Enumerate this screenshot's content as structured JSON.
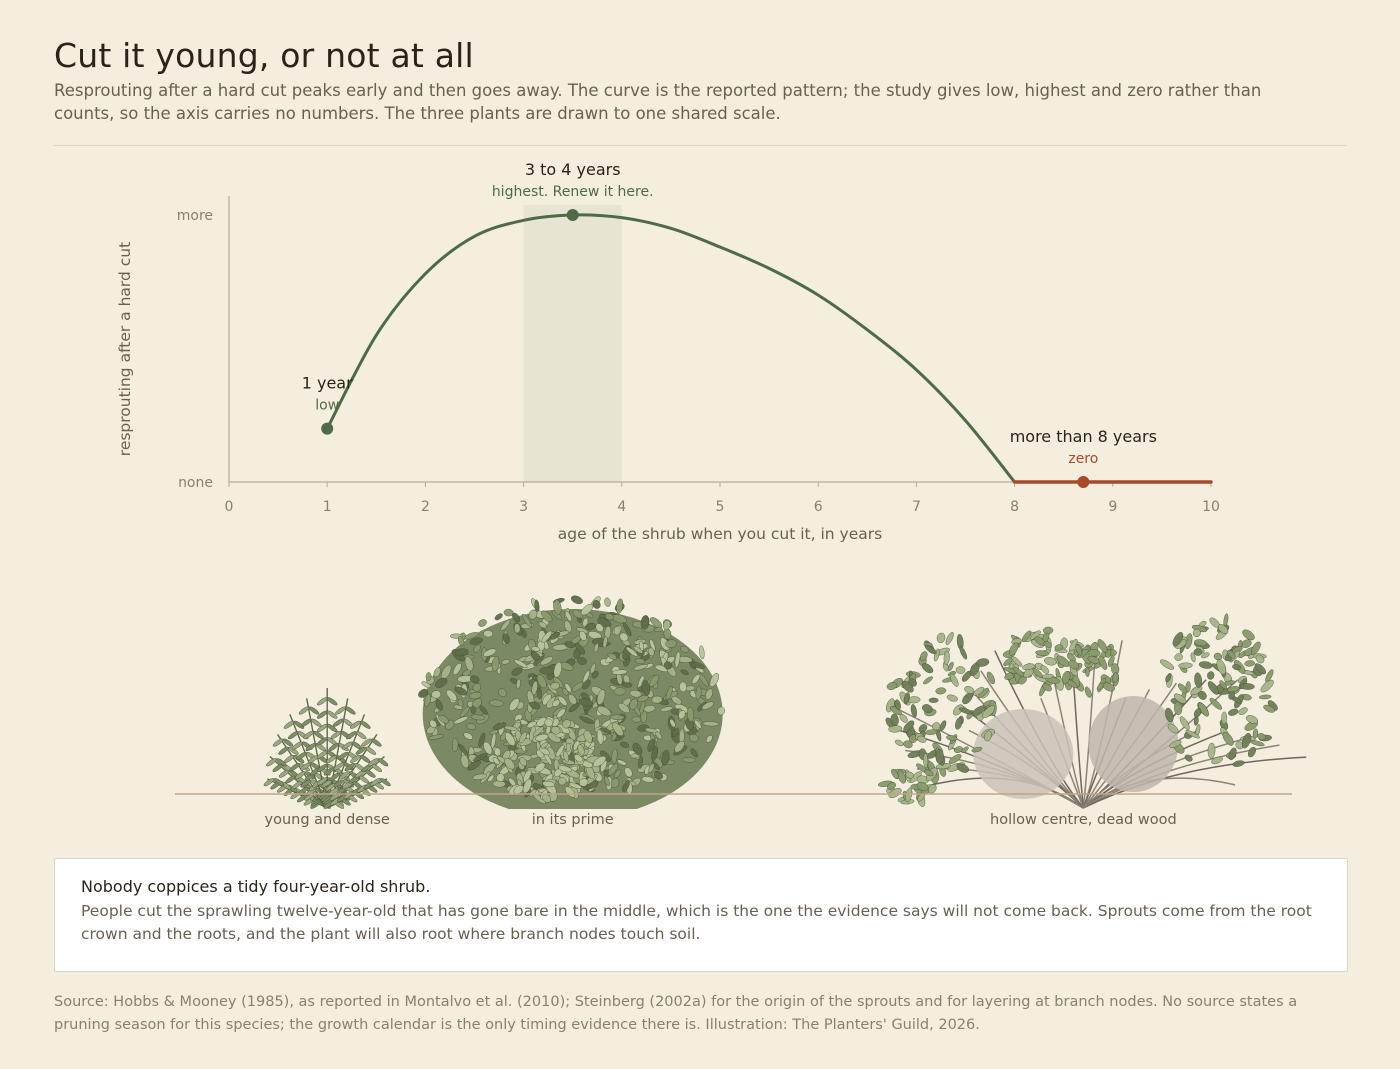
{
  "header": {
    "title": "Cut it young, or not at all",
    "subtitle": "Resprouting after a hard cut peaks early and then goes away. The curve is the reported pattern; the study gives low, highest and zero rather than counts, so the axis carries no numbers. The three plants are drawn to one shared scale."
  },
  "chart_data": {
    "type": "line",
    "xlabel": "age of the shrub when you cut it, in years",
    "ylabel": "resprouting after a hard cut",
    "xlim": [
      0,
      10
    ],
    "ylim": [
      0,
      1
    ],
    "x_ticks": [
      "0",
      "1",
      "2",
      "3",
      "4",
      "5",
      "6",
      "7",
      "8",
      "9",
      "10"
    ],
    "y_ticks": [
      "none",
      "more"
    ],
    "grid": false,
    "highlight_band": [
      3,
      4
    ],
    "series": [
      {
        "x": [
          1,
          1.5,
          2,
          2.5,
          3,
          3.5,
          4,
          4.5,
          5,
          5.5,
          6,
          6.5,
          7,
          7.5,
          8
        ],
        "y": [
          0.2,
          0.55,
          0.78,
          0.92,
          0.98,
          1.0,
          0.99,
          0.95,
          0.88,
          0.8,
          0.7,
          0.57,
          0.42,
          0.23,
          0.0
        ],
        "color": "#4e6a47"
      },
      {
        "x": [
          8,
          8.7,
          10
        ],
        "y": [
          0,
          0,
          0
        ],
        "color": "#a8492a"
      }
    ],
    "annotations": [
      {
        "x": 1,
        "y": 0.2,
        "label": "1 year",
        "sublabel": "low",
        "color": "#4e6a47"
      },
      {
        "x": 3.5,
        "y": 1.0,
        "label": "3 to 4 years",
        "sublabel": "highest. Renew it here.",
        "color": "#4e6a47"
      },
      {
        "x": 8.7,
        "y": 0,
        "label": "more than 8 years",
        "sublabel": "zero",
        "color": "#a8492a"
      }
    ],
    "illustrations": [
      {
        "x": 1,
        "caption": "young and dense",
        "icon": "young-shrub-icon"
      },
      {
        "x": 3.5,
        "caption": "in its prime",
        "icon": "prime-shrub-icon"
      },
      {
        "x": 8.7,
        "caption": "hollow centre, dead wood",
        "icon": "old-shrub-icon"
      }
    ]
  },
  "callout": {
    "title": "Nobody coppices a tidy four-year-old shrub.",
    "body": "People cut the sprawling twelve-year-old that has gone bare in the middle, which is the one the evidence says will not come back. Sprouts come from the root crown and the roots, and the plant will also root where branch nodes touch soil."
  },
  "footer": {
    "source": "Source: Hobbs & Mooney (1985), as reported in Montalvo et al. (2010); Steinberg (2002a) for the origin of the sprouts and for layering at branch nodes. No source states a pruning season for this species; the growth calendar is the only timing evidence there is. Illustration: The Planters' Guild, 2026."
  },
  "colors": {
    "background": "#f4eedf",
    "curve": "#4e6a47",
    "zero": "#a8492a",
    "band": "#e7e4d4",
    "axis": "#b8ab97",
    "ground": "#c0a582"
  }
}
